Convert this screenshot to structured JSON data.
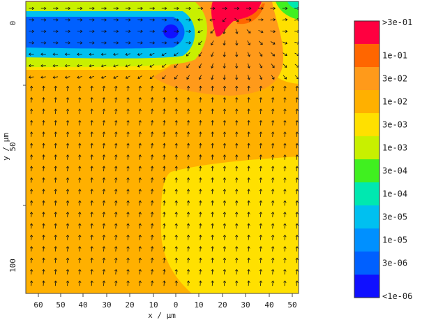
{
  "chart_data": {
    "type": "heatmap",
    "title": "",
    "xlabel": "x / μm",
    "ylabel": "y / μm",
    "x_tick_labels": [
      "60",
      "50",
      "40",
      "30",
      "20",
      "10",
      "0",
      "10",
      "20",
      "30",
      "40",
      "50"
    ],
    "y_tick_labels": [
      "0",
      "50",
      "100"
    ],
    "xlim": [
      -70,
      52
    ],
    "ylim": [
      -8,
      120
    ],
    "colorbar": {
      "labels": [
        ">3e-01",
        "1e-01",
        "3e-02",
        "1e-02",
        "3e-03",
        "1e-03",
        "3e-04",
        "1e-04",
        "3e-05",
        "1e-05",
        "3e-06",
        "<1e-06"
      ],
      "colors": [
        "#ff0040",
        "#ff6600",
        "#ff9a1a",
        "#ffb000",
        "#ffe000",
        "#c8f000",
        "#40f020",
        "#00e8b0",
        "#00c0f0",
        "#0090ff",
        "#0060ff",
        "#1010ff"
      ]
    },
    "vector_field": true,
    "regions": [
      {
        "level": "1e-02",
        "description": "background"
      },
      {
        "level": "3e-03",
        "description": "lower right region"
      },
      {
        "level": "3e-02",
        "description": "upper center lobe"
      },
      {
        "level": ">3e-01",
        "description": "top center source"
      },
      {
        "level": "<1e-06",
        "description": "upper left channel"
      }
    ]
  }
}
